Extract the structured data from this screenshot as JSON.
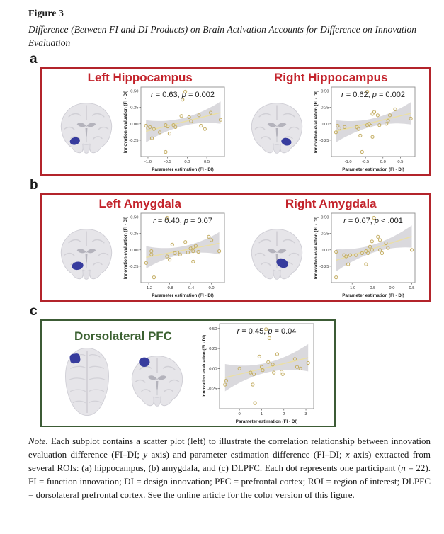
{
  "figure": {
    "label": "Figure 3",
    "caption": "Difference (Between FI and DI Products) on Brain Activation Accounts for Difference on Innovation Evaluation"
  },
  "colors": {
    "red_border": "#B3242B",
    "red_text": "#C3232B",
    "green_border": "#3C5B35",
    "green_text": "#3A6030",
    "roi_blue": "#30359A",
    "point_stroke": "#C3AD62",
    "trend_line": "#EADFA6",
    "ci_band": "#D6D5D9",
    "annotation_text": "#1A1A1A"
  },
  "sections": [
    {
      "label": "a",
      "panels": [
        {
          "title": "Left Hippocampus",
          "chart": 0
        },
        {
          "title": "Right Hippocampus",
          "chart": 1
        }
      ]
    },
    {
      "label": "b",
      "panels": [
        {
          "title": "Left Amygdala",
          "chart": 2
        },
        {
          "title": "Right Amygdala",
          "chart": 3
        }
      ]
    },
    {
      "label": "c",
      "panels": [
        {
          "title": "Dorsolateral PFC",
          "chart": 4
        }
      ]
    }
  ],
  "chart_data": [
    {
      "id": "left-hippocampus",
      "type": "scatter",
      "annotation": {
        "r": "0.63",
        "p_op": "=",
        "p": "0.002"
      },
      "xlabel": "Parameter estimation (FI - DI)",
      "ylabel": "Innovation evaluation (FI - DI)",
      "xlim": [
        -1.18,
        0.95
      ],
      "ylim": [
        -0.5,
        0.56
      ],
      "x_ticks": [
        -1.0,
        -0.5,
        0.0,
        0.5
      ],
      "x_tick_labels": [
        "-1.0",
        "-0.5",
        "0.0",
        "0.5"
      ],
      "y_ticks": [
        0.5,
        0.25,
        0.0,
        -0.25
      ],
      "y_tick_labels": [
        "0.50",
        "0.25",
        "0.00",
        "-0.25"
      ],
      "points": [
        [
          -1.05,
          -0.03
        ],
        [
          -1.0,
          -0.07
        ],
        [
          -0.95,
          -0.05
        ],
        [
          -0.9,
          -0.22
        ],
        [
          -0.85,
          -0.08
        ],
        [
          -0.7,
          -0.13
        ],
        [
          -0.55,
          -0.02
        ],
        [
          -0.5,
          -0.04
        ],
        [
          -0.45,
          -0.15
        ],
        [
          -0.55,
          -0.43
        ],
        [
          -0.35,
          -0.02
        ],
        [
          -0.3,
          -0.05
        ],
        [
          -0.15,
          0.12
        ],
        [
          -0.05,
          0.49
        ],
        [
          -0.12,
          0.37
        ],
        [
          0.05,
          0.1
        ],
        [
          0.1,
          0.04
        ],
        [
          0.3,
          0.13
        ],
        [
          0.35,
          -0.03
        ],
        [
          0.45,
          -0.08
        ],
        [
          0.6,
          0.17
        ],
        [
          0.85,
          0.06
        ]
      ]
    },
    {
      "id": "right-hippocampus",
      "type": "scatter",
      "annotation": {
        "r": "0.62",
        "p_op": "=",
        "p": "0.002"
      },
      "xlabel": "Parameter estimation (FI - DI)",
      "ylabel": "Innovation evaluation (FI - DI)",
      "xlim": [
        -1.48,
        0.92
      ],
      "ylim": [
        -0.5,
        0.56
      ],
      "x_ticks": [
        -1.0,
        -0.5,
        0.0,
        0.5
      ],
      "x_tick_labels": [
        "-1.0",
        "-0.5",
        "0.0",
        "0.5"
      ],
      "y_ticks": [
        0.5,
        0.25,
        0.0,
        -0.25
      ],
      "y_tick_labels": [
        "0.50",
        "0.25",
        "0.00",
        "-0.25"
      ],
      "points": [
        [
          -1.35,
          -0.13
        ],
        [
          -1.3,
          -0.03
        ],
        [
          -1.25,
          -0.07
        ],
        [
          -1.1,
          -0.05
        ],
        [
          -0.75,
          -0.05
        ],
        [
          -0.7,
          -0.08
        ],
        [
          -0.65,
          -0.18
        ],
        [
          -0.6,
          -0.43
        ],
        [
          -0.45,
          0.49
        ],
        [
          -0.45,
          -0.02
        ],
        [
          -0.4,
          0.0
        ],
        [
          -0.35,
          -0.03
        ],
        [
          -0.3,
          0.15
        ],
        [
          -0.25,
          0.18
        ],
        [
          -0.3,
          -0.2
        ],
        [
          -0.15,
          0.13
        ],
        [
          -0.1,
          -0.02
        ],
        [
          0.1,
          0.0
        ],
        [
          0.15,
          0.05
        ],
        [
          0.2,
          0.13
        ],
        [
          0.35,
          0.22
        ],
        [
          0.8,
          0.08
        ]
      ]
    },
    {
      "id": "left-amygdala",
      "type": "scatter",
      "annotation": {
        "r": "0.40",
        "p_op": "=",
        "p": "0.07"
      },
      "xlabel": "Parameter estimation (FI - DI)",
      "ylabel": "Innovation evaluation (FI - DI)",
      "xlim": [
        -1.35,
        0.25
      ],
      "ylim": [
        -0.5,
        0.56
      ],
      "x_ticks": [
        -1.2,
        -0.8,
        -0.4,
        0.0
      ],
      "x_tick_labels": [
        "-1.2",
        "-0.8",
        "-0.4",
        "0.0"
      ],
      "y_ticks": [
        0.5,
        0.25,
        0.0,
        -0.25
      ],
      "y_tick_labels": [
        "0.50",
        "0.25",
        "0.00",
        "-0.25"
      ],
      "points": [
        [
          -1.25,
          -0.2
        ],
        [
          -1.15,
          -0.02
        ],
        [
          -1.15,
          -0.07
        ],
        [
          -1.1,
          -0.42
        ],
        [
          -0.85,
          0.49
        ],
        [
          -0.85,
          -0.1
        ],
        [
          -0.8,
          -0.15
        ],
        [
          -0.75,
          0.08
        ],
        [
          -0.7,
          -0.05
        ],
        [
          -0.65,
          -0.04
        ],
        [
          -0.6,
          -0.07
        ],
        [
          -0.5,
          0.12
        ],
        [
          -0.45,
          -0.04
        ],
        [
          -0.4,
          0.02
        ],
        [
          -0.35,
          0.04
        ],
        [
          -0.35,
          -0.02
        ],
        [
          -0.35,
          -0.18
        ],
        [
          -0.3,
          0.06
        ],
        [
          -0.25,
          -0.03
        ],
        [
          -0.05,
          0.2
        ],
        [
          0.0,
          0.15
        ],
        [
          0.15,
          -0.02
        ]
      ]
    },
    {
      "id": "right-amygdala",
      "type": "scatter",
      "annotation": {
        "r": "0.67",
        "p_op": "<",
        "p": ".001"
      },
      "xlabel": "Parameter estimation (FI - DI)",
      "ylabel": "Innovation evaluation (FI - DI)",
      "xlim": [
        -1.52,
        0.58
      ],
      "ylim": [
        -0.5,
        0.56
      ],
      "x_ticks": [
        -1.0,
        -0.5,
        0.0,
        0.5
      ],
      "x_tick_labels": [
        "-1.0",
        "-0.5",
        "0.0",
        "0.5"
      ],
      "y_ticks": [
        0.5,
        0.25,
        0.0,
        -0.25
      ],
      "y_tick_labels": [
        "0.50",
        "0.25",
        "0.00",
        "-0.25"
      ],
      "points": [
        [
          -1.4,
          -0.03
        ],
        [
          -1.4,
          -0.42
        ],
        [
          -1.2,
          -0.08
        ],
        [
          -1.15,
          -0.1
        ],
        [
          -1.1,
          -0.22
        ],
        [
          -1.05,
          -0.08
        ],
        [
          -0.9,
          -0.08
        ],
        [
          -0.75,
          -0.05
        ],
        [
          -0.65,
          -0.02
        ],
        [
          -0.65,
          -0.22
        ],
        [
          -0.6,
          -0.05
        ],
        [
          -0.55,
          0.05
        ],
        [
          -0.5,
          0.0
        ],
        [
          -0.5,
          0.13
        ],
        [
          -0.45,
          0.49
        ],
        [
          -0.35,
          0.2
        ],
        [
          -0.3,
          0.15
        ],
        [
          -0.3,
          0.0
        ],
        [
          -0.25,
          -0.05
        ],
        [
          -0.15,
          0.1
        ],
        [
          -0.1,
          0.03
        ],
        [
          0.5,
          0.0
        ]
      ]
    },
    {
      "id": "dlpfc",
      "type": "scatter",
      "annotation": {
        "r": "0.45",
        "p_op": "=",
        "p": "0.04"
      },
      "xlabel": "Parameter estimation (FI - DI)",
      "ylabel": "Innovation evaluation (FI - DI)",
      "xlim": [
        -0.9,
        3.35
      ],
      "ylim": [
        -0.5,
        0.56
      ],
      "x_ticks": [
        0,
        1,
        2,
        3
      ],
      "x_tick_labels": [
        "0",
        "1",
        "2",
        "3"
      ],
      "y_ticks": [
        0.5,
        0.25,
        0.0,
        -0.25
      ],
      "y_tick_labels": [
        "0.50",
        "0.25",
        "0.00",
        "-0.25"
      ],
      "points": [
        [
          -0.65,
          -0.2
        ],
        [
          -0.6,
          -0.15
        ],
        [
          0.0,
          0.0
        ],
        [
          0.5,
          -0.05
        ],
        [
          0.6,
          -0.2
        ],
        [
          0.65,
          -0.07
        ],
        [
          0.7,
          -0.43
        ],
        [
          0.9,
          0.15
        ],
        [
          1.0,
          0.02
        ],
        [
          1.05,
          -0.02
        ],
        [
          1.2,
          0.49
        ],
        [
          1.35,
          0.38
        ],
        [
          1.3,
          0.08
        ],
        [
          1.5,
          0.05
        ],
        [
          1.55,
          -0.05
        ],
        [
          1.7,
          0.18
        ],
        [
          1.9,
          -0.04
        ],
        [
          1.95,
          -0.07
        ],
        [
          2.5,
          0.12
        ],
        [
          2.6,
          0.02
        ],
        [
          2.75,
          0.0
        ],
        [
          3.1,
          0.07
        ]
      ]
    }
  ],
  "note": {
    "segments": [
      {
        "text": "Note.",
        "italic": true
      },
      {
        "text": "  Each subplot contains a scatter plot (left) to illustrate the correlation relationship between innovation evaluation difference (FI–DI; ",
        "italic": false
      },
      {
        "text": "y",
        "italic": true
      },
      {
        "text": " axis) and parameter estimation difference (FI–DI; ",
        "italic": false
      },
      {
        "text": "x",
        "italic": true
      },
      {
        "text": " axis) extracted from several ROIs: (a) hippocampus, (b) amygdala, and (c) DLPFC. Each dot represents one participant (",
        "italic": false
      },
      {
        "text": "n",
        "italic": true
      },
      {
        "text": " = 22). FI = function innovation; DI = design innovation; PFC = prefrontal cortex; ROI = region of interest; DLPFC = dorsolateral prefrontal cortex. See the online article for the color version of this figure.",
        "italic": false
      }
    ]
  }
}
